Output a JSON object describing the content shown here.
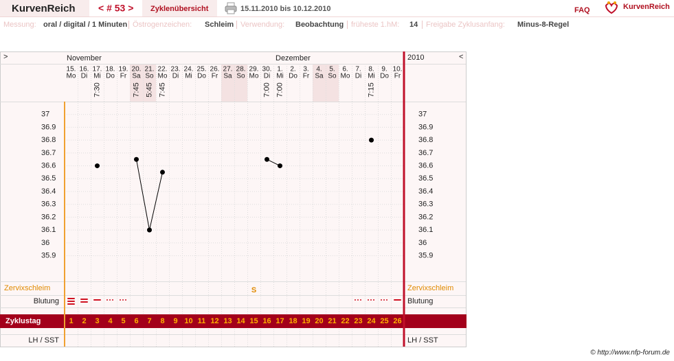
{
  "header": {
    "logo": "KurvenReich",
    "cycle_nav": "< # 53 >",
    "overview": "Zyklenübersicht",
    "period": "15.11.2010 bis 10.12.2010",
    "faq": "FAQ",
    "brand": "KurvenReich"
  },
  "settings": [
    {
      "label": "Messung:",
      "value": "oral / digital / 1 Minuten"
    },
    {
      "label": "Östrogenzeichen:",
      "value": "Schleim"
    },
    {
      "label": "Verwendung:",
      "value": "Beobachtung"
    },
    {
      "label": "früheste 1.hM:",
      "value": "14"
    },
    {
      "label": "Freigabe Zyklusanfang:",
      "value": "Minus-8-Regel"
    }
  ],
  "chart": {
    "prev": ">",
    "next": "<",
    "year": "2010",
    "ylim": [
      35.7,
      37.1
    ],
    "yticks": [
      37,
      36.9,
      36.8,
      36.7,
      36.6,
      36.5,
      36.4,
      36.3,
      36.2,
      36.1,
      36,
      35.9
    ],
    "mucus_label": "Zervixschleim",
    "bleeding_label": "Blutung",
    "cycle_day_label": "Zyklustag",
    "lh_label": "LH / SST",
    "days": [
      {
        "month": "November",
        "date": "15.",
        "weekday": "Mo",
        "time": null,
        "temperature": null,
        "mucus": null,
        "cycle_day": 1
      },
      {
        "month": null,
        "date": "16.",
        "weekday": "Di",
        "time": null,
        "temperature": null,
        "mucus": null,
        "cycle_day": 2
      },
      {
        "month": null,
        "date": "17.",
        "weekday": "Mi",
        "time": "7:30",
        "temperature": 36.6,
        "mucus": null,
        "cycle_day": 3
      },
      {
        "month": null,
        "date": "18.",
        "weekday": "Do",
        "time": null,
        "temperature": null,
        "mucus": null,
        "cycle_day": 4
      },
      {
        "month": null,
        "date": "19.",
        "weekday": "Fr",
        "time": null,
        "temperature": null,
        "mucus": null,
        "cycle_day": 5
      },
      {
        "month": null,
        "date": "20.",
        "weekday": "Sa",
        "time": "7:45",
        "temperature": 36.65,
        "mucus": null,
        "cycle_day": 6
      },
      {
        "month": null,
        "date": "21.",
        "weekday": "So",
        "time": "5:45",
        "temperature": 36.1,
        "mucus": null,
        "cycle_day": 7
      },
      {
        "month": null,
        "date": "22.",
        "weekday": "Mo",
        "time": "7:45",
        "temperature": 36.55,
        "mucus": null,
        "cycle_day": 8
      },
      {
        "month": null,
        "date": "23.",
        "weekday": "Di",
        "time": null,
        "temperature": null,
        "mucus": null,
        "cycle_day": 9
      },
      {
        "month": null,
        "date": "24.",
        "weekday": "Mi",
        "time": null,
        "temperature": null,
        "mucus": null,
        "cycle_day": 10
      },
      {
        "month": null,
        "date": "25.",
        "weekday": "Do",
        "time": null,
        "temperature": null,
        "mucus": null,
        "cycle_day": 11
      },
      {
        "month": null,
        "date": "26.",
        "weekday": "Fr",
        "time": null,
        "temperature": null,
        "mucus": null,
        "cycle_day": 12
      },
      {
        "month": null,
        "date": "27.",
        "weekday": "Sa",
        "time": null,
        "temperature": null,
        "mucus": null,
        "cycle_day": 13
      },
      {
        "month": null,
        "date": "28.",
        "weekday": "So",
        "time": null,
        "temperature": null,
        "mucus": null,
        "cycle_day": 14
      },
      {
        "month": null,
        "date": "29.",
        "weekday": "Mo",
        "time": null,
        "temperature": null,
        "mucus": "S",
        "cycle_day": 15
      },
      {
        "month": null,
        "date": "30.",
        "weekday": "Di",
        "time": "7:00",
        "temperature": 36.65,
        "mucus": null,
        "cycle_day": 16
      },
      {
        "month": "Dezember",
        "date": "1.",
        "weekday": "Mi",
        "time": "7:00",
        "temperature": 36.6,
        "mucus": null,
        "cycle_day": 17
      },
      {
        "month": null,
        "date": "2.",
        "weekday": "Do",
        "time": null,
        "temperature": null,
        "mucus": null,
        "cycle_day": 18
      },
      {
        "month": null,
        "date": "3.",
        "weekday": "Fr",
        "time": null,
        "temperature": null,
        "mucus": null,
        "cycle_day": 19
      },
      {
        "month": null,
        "date": "4.",
        "weekday": "Sa",
        "time": null,
        "temperature": null,
        "mucus": null,
        "cycle_day": 20
      },
      {
        "month": null,
        "date": "5.",
        "weekday": "So",
        "time": null,
        "temperature": null,
        "mucus": null,
        "cycle_day": 21
      },
      {
        "month": null,
        "date": "6.",
        "weekday": "Mo",
        "time": null,
        "temperature": null,
        "mucus": null,
        "cycle_day": 22
      },
      {
        "month": null,
        "date": "7.",
        "weekday": "Di",
        "time": null,
        "temperature": null,
        "mucus": null,
        "cycle_day": 23
      },
      {
        "month": null,
        "date": "8.",
        "weekday": "Mi",
        "time": "7:15",
        "temperature": 36.8,
        "mucus": null,
        "cycle_day": 24
      },
      {
        "month": null,
        "date": "9.",
        "weekday": "Do",
        "time": null,
        "temperature": null,
        "mucus": null,
        "cycle_day": 25
      },
      {
        "month": null,
        "date": "10.",
        "weekday": "Fr",
        "time": null,
        "temperature": null,
        "mucus": null,
        "cycle_day": 26
      }
    ]
  },
  "footer": "© http://www.nfp-forum.de"
}
